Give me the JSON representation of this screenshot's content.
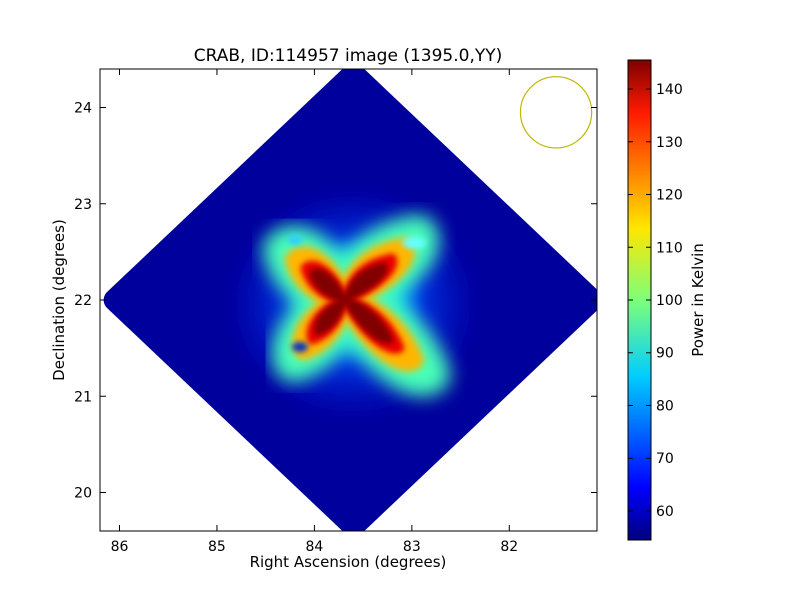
{
  "chart_data": {
    "type": "heatmap",
    "title": "CRAB, ID:114957 image (1395.0,YY)",
    "xlabel": "Right Ascension (degrees)",
    "ylabel": "Declination (degrees)",
    "xlim": [
      86.2,
      81.1
    ],
    "ylim": [
      19.6,
      24.4
    ],
    "x_reversed": true,
    "xticks": [
      86,
      85,
      84,
      83,
      82
    ],
    "yticks": [
      20,
      21,
      22,
      23,
      24
    ],
    "colorbar": {
      "label": "Power in Kelvin",
      "range": [
        54.5,
        145.5
      ],
      "ticks": [
        60,
        70,
        80,
        90,
        100,
        110,
        120,
        130,
        140
      ],
      "colormap": "jet"
    },
    "field": {
      "shape": "diamond",
      "center": [
        83.6,
        22.0
      ],
      "half_width_deg": 2.45,
      "half_height_deg": 2.35,
      "background_value": 57
    },
    "source_arms": [
      {
        "ra": 83.8,
        "dec": 21.75,
        "peak": 145
      },
      {
        "ra": 84.08,
        "dec": 22.22,
        "peak": 140
      },
      {
        "ra": 83.42,
        "dec": 22.32,
        "peak": 140
      },
      {
        "ra": 83.25,
        "dec": 21.8,
        "peak": 140
      }
    ],
    "beam_circle": {
      "ra": 81.52,
      "dec": 23.95,
      "radius_deg": 0.37,
      "color": "#bfb500"
    },
    "colors": {
      "axis": "#000000",
      "background": "#ffffff"
    }
  }
}
